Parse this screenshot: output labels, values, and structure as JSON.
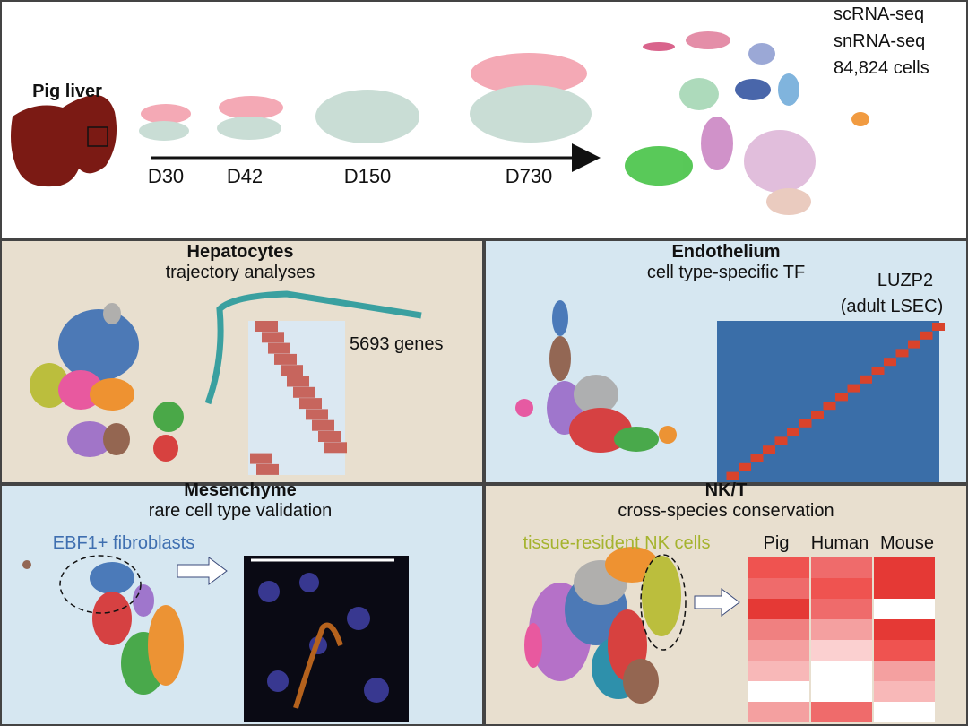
{
  "header": {
    "organ": "Pig liver",
    "timepoints": [
      "D30",
      "D42",
      "D150",
      "D730"
    ],
    "methods": [
      "scRNA-seq",
      "snRNA-seq",
      "84,824 cells"
    ]
  },
  "panels": [
    {
      "title": "Hepatocytes",
      "subtitle": "trajectory analyses",
      "annotations": [
        "5693 genes"
      ]
    },
    {
      "title": "Endothelium",
      "subtitle": "cell type-specific TF",
      "annotations": [
        "LUZP2",
        "(adult LSEC)"
      ]
    },
    {
      "title": "Mesenchyme",
      "subtitle": "rare cell type validation",
      "annotations": [
        "EBF1+ fibroblasts"
      ]
    },
    {
      "title": "NK/T",
      "subtitle": "cross-species conservation",
      "annotations": [
        "tissue-resident NK cells"
      ],
      "species": [
        "Pig",
        "Human",
        "Mouse"
      ]
    }
  ]
}
